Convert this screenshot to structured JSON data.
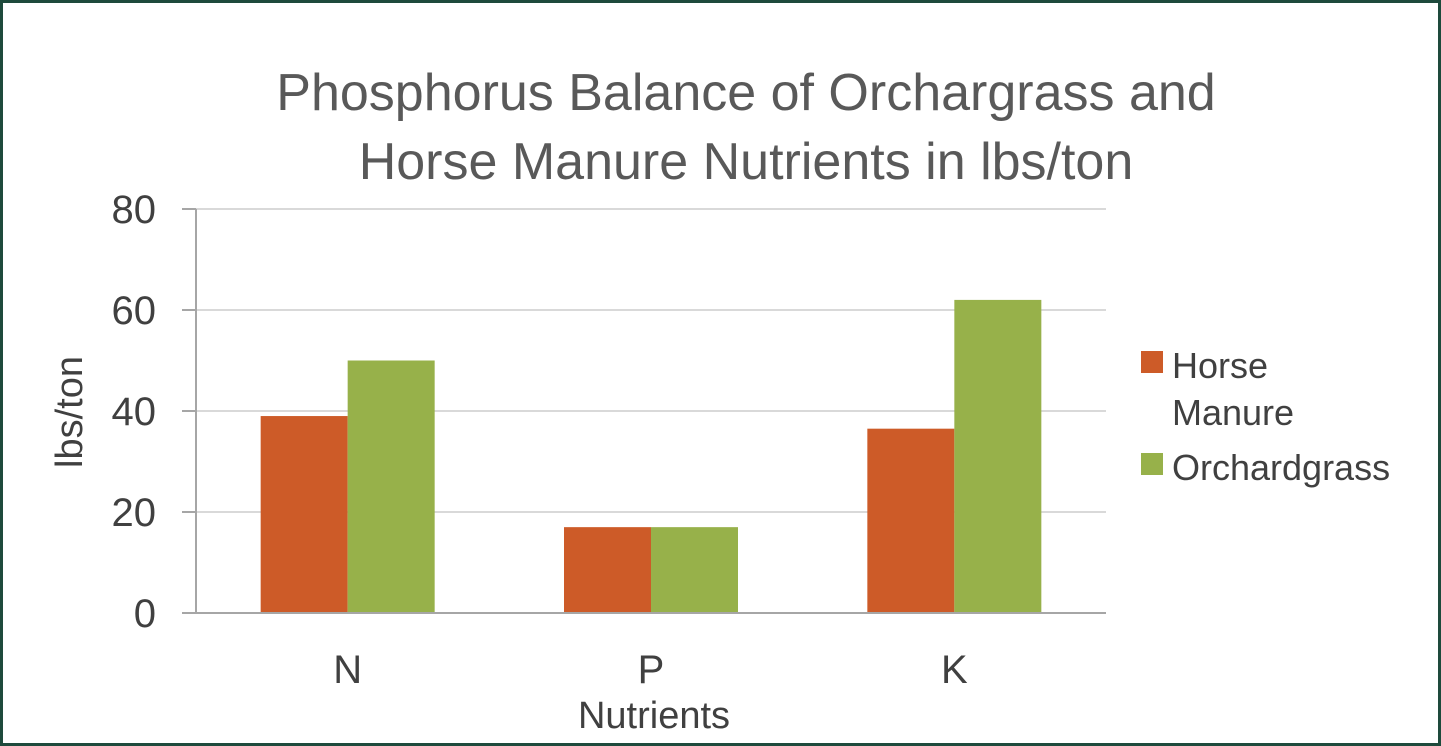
{
  "chart_data": {
    "type": "bar",
    "title_lines": [
      "Phosphorus Balance of Orchargrass and",
      "Horse Manure Nutrients in lbs/ton"
    ],
    "xlabel": "Nutrients",
    "ylabel": "lbs/ton",
    "categories": [
      "N",
      "P",
      "K"
    ],
    "yticks": [
      "0",
      "20",
      "40",
      "60",
      "80"
    ],
    "ylim": [
      0,
      80
    ],
    "grid": true,
    "legend_position": "right",
    "series": [
      {
        "name_lines": [
          "Horse",
          "Manure"
        ],
        "color": "#cd5b28",
        "values": [
          39,
          17,
          36.5
        ]
      },
      {
        "name_lines": [
          "Orchardgrass"
        ],
        "color": "#97b14a",
        "values": [
          50,
          17,
          62
        ]
      }
    ]
  },
  "colors": {
    "frame": "#1e4a3c",
    "grid": "#d9d9d9",
    "axis": "#a6a6a6"
  }
}
